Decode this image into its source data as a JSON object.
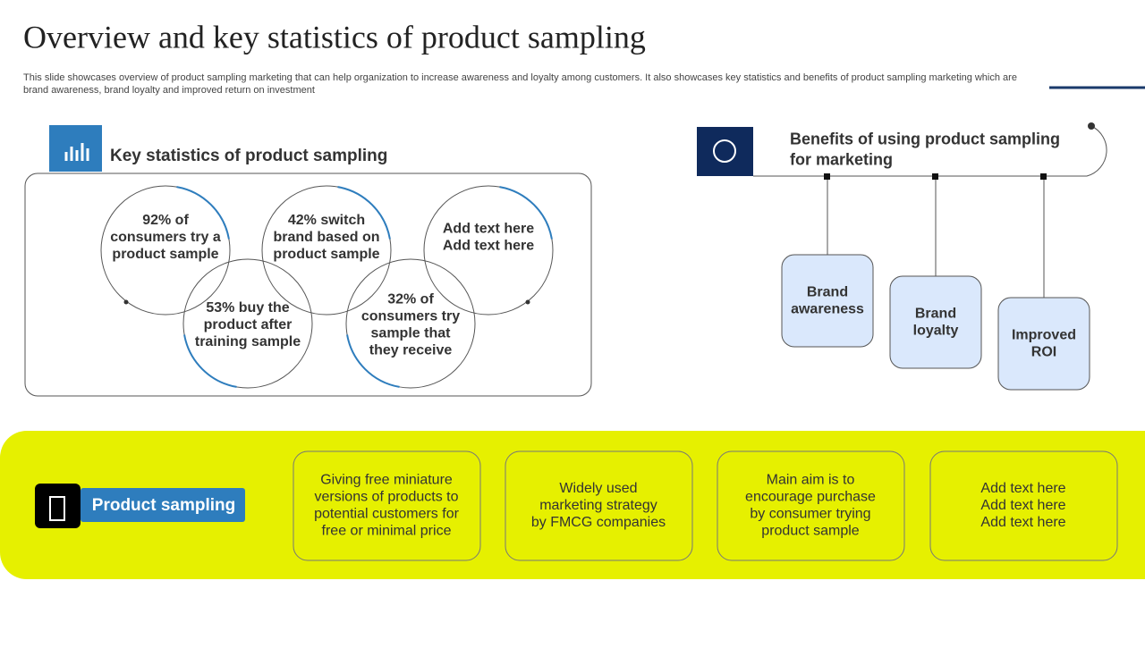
{
  "header": {
    "title": "Overview and key statistics of product sampling",
    "subtitle": [
      "This slide showcases overview of product sampling marketing that can help organization to increase awareness and loyalty among customers. It also showcases key statistics and benefits of product sampling marketing which are",
      "brand awareness, brand loyalty and improved return on investment"
    ]
  },
  "statistics": {
    "heading": "Key statistics of product sampling",
    "circles": [
      [
        "92% of",
        "consumers try a",
        "product sample"
      ],
      [
        "53% buy the",
        "product after",
        "training sample"
      ],
      [
        "42% switch",
        "brand based on",
        "product sample"
      ],
      [
        "32% of",
        "consumers try",
        "sample that",
        "they receive"
      ],
      [
        "Add text here",
        "Add text here"
      ]
    ]
  },
  "benefits": {
    "heading": [
      "Benefits of using product sampling",
      "for marketing"
    ],
    "items": [
      [
        "Brand",
        "awareness"
      ],
      [
        "Brand",
        "loyalty"
      ],
      [
        "Improved",
        "ROI"
      ]
    ]
  },
  "product_sampling": {
    "label": "Product sampling",
    "cards": [
      [
        "Giving free miniature",
        "versions of products to",
        "potential customers for",
        "free or minimal price"
      ],
      [
        "Widely used",
        "marketing strategy",
        "by FMCG companies"
      ],
      [
        "Main aim is to",
        "encourage purchase",
        "by consumer trying",
        "product sample"
      ],
      [
        "Add text here",
        "Add text here",
        "Add text here"
      ]
    ]
  }
}
